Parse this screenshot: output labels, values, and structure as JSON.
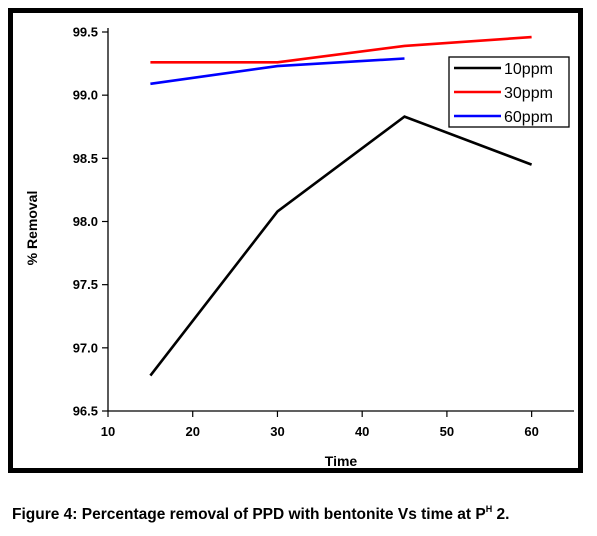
{
  "chart_data": {
    "type": "line",
    "xlabel": "Time",
    "ylabel": "% Removal",
    "xlim": [
      10,
      65
    ],
    "ylim": [
      96.5,
      99.5
    ],
    "xticks": [
      10,
      20,
      30,
      40,
      50,
      60
    ],
    "yticks": [
      96.5,
      97.0,
      97.5,
      98.0,
      98.5,
      99.0,
      99.5
    ],
    "xtick_labels": [
      "10",
      "20",
      "30",
      "40",
      "50",
      "60"
    ],
    "ytick_labels": [
      "96.5",
      "97.0",
      "97.5",
      "98.0",
      "98.5",
      "99.0",
      "99.5"
    ],
    "grid": false,
    "legend_position": "top-right",
    "series": [
      {
        "name": "10ppm",
        "color": "#000000",
        "x": [
          15,
          30,
          45,
          60
        ],
        "y": [
          96.78,
          98.08,
          98.83,
          98.45
        ]
      },
      {
        "name": "30ppm",
        "color": "#ff0000",
        "x": [
          15,
          30,
          45,
          60
        ],
        "y": [
          99.26,
          99.26,
          99.39,
          99.46
        ]
      },
      {
        "name": "60ppm",
        "color": "#0000ff",
        "x": [
          15,
          30,
          45
        ],
        "y": [
          99.09,
          99.23,
          99.29
        ]
      }
    ]
  },
  "caption": {
    "text": "Figure 4: Percentage removal of PPD with bentonite Vs time at P",
    "superscript": "H",
    "suffix": " 2."
  }
}
